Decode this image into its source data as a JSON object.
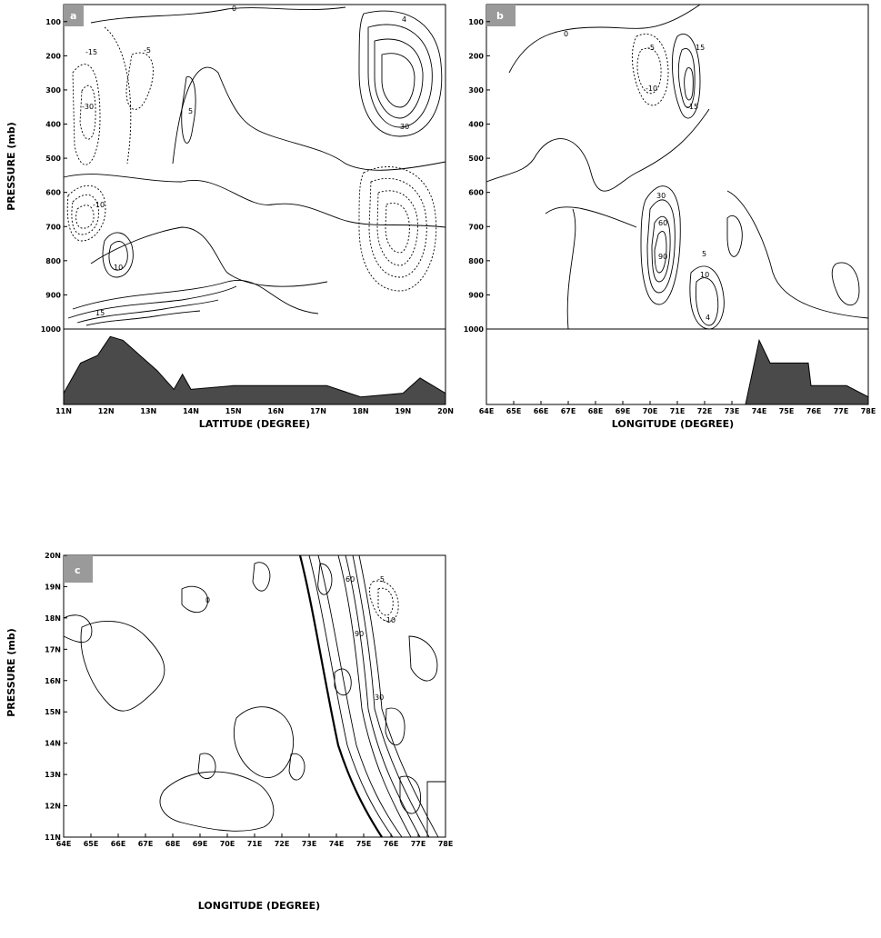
{
  "chart_data": [
    {
      "type": "contour",
      "panel_label": "a",
      "xlabel": "LATITUDE (DEGREE)",
      "ylabel": "PRESSURE (mb)",
      "x_ticks": [
        "11N",
        "12N",
        "13N",
        "14N",
        "15N",
        "16N",
        "17N",
        "18N",
        "19N",
        "20N"
      ],
      "y_ticks": [
        "100",
        "200",
        "300",
        "400",
        "500",
        "600",
        "700",
        "800",
        "900",
        "1000"
      ],
      "xlim": [
        11,
        20
      ],
      "ylim": [
        100,
        1000
      ],
      "y_inverted": true,
      "contour_labels": [
        "0",
        "-5",
        "-15",
        "-30",
        "-10",
        "5",
        "10",
        "15",
        "30",
        "4"
      ],
      "terrain_profile": [
        {
          "x": 11.0,
          "h": 0.15
        },
        {
          "x": 11.4,
          "h": 0.55
        },
        {
          "x": 11.8,
          "h": 0.65
        },
        {
          "x": 12.1,
          "h": 0.9
        },
        {
          "x": 12.4,
          "h": 0.85
        },
        {
          "x": 12.8,
          "h": 0.65
        },
        {
          "x": 13.2,
          "h": 0.45
        },
        {
          "x": 13.6,
          "h": 0.2
        },
        {
          "x": 13.8,
          "h": 0.4
        },
        {
          "x": 14.0,
          "h": 0.2
        },
        {
          "x": 15.0,
          "h": 0.25
        },
        {
          "x": 17.2,
          "h": 0.25
        },
        {
          "x": 18.0,
          "h": 0.1
        },
        {
          "x": 19.0,
          "h": 0.15
        },
        {
          "x": 19.4,
          "h": 0.35
        },
        {
          "x": 20.0,
          "h": 0.15
        }
      ]
    },
    {
      "type": "contour",
      "panel_label": "b",
      "xlabel": "LONGITUDE (DEGREE)",
      "ylabel": "",
      "x_ticks": [
        "64E",
        "65E",
        "66E",
        "67E",
        "68E",
        "69E",
        "70E",
        "71E",
        "72E",
        "73E",
        "74E",
        "75E",
        "76E",
        "77E",
        "78E"
      ],
      "y_ticks": [
        "100",
        "200",
        "300",
        "400",
        "500",
        "600",
        "700",
        "800",
        "900",
        "1000"
      ],
      "xlim": [
        64,
        78
      ],
      "ylim": [
        100,
        1000
      ],
      "y_inverted": true,
      "contour_labels": [
        "0",
        "-5",
        "-10",
        "15",
        "30",
        "60",
        "90",
        "4",
        "10",
        "5",
        "-15"
      ],
      "terrain_profile": [
        {
          "x": 64.0,
          "h": 0.0
        },
        {
          "x": 73.5,
          "h": 0.0
        },
        {
          "x": 74.0,
          "h": 0.85
        },
        {
          "x": 74.4,
          "h": 0.55
        },
        {
          "x": 75.8,
          "h": 0.55
        },
        {
          "x": 75.9,
          "h": 0.25
        },
        {
          "x": 77.2,
          "h": 0.25
        },
        {
          "x": 78.0,
          "h": 0.1
        }
      ]
    },
    {
      "type": "contour",
      "panel_label": "c",
      "xlabel": "LONGITUDE (DEGREE)",
      "ylabel": "PRESSURE (mb)",
      "x_ticks": [
        "64E",
        "65E",
        "66E",
        "67E",
        "68E",
        "69E",
        "70E",
        "71E",
        "72E",
        "73E",
        "74E",
        "75E",
        "76E",
        "77E",
        "78E"
      ],
      "y_ticks": [
        "11N",
        "12N",
        "13N",
        "14N",
        "15N",
        "16N",
        "17N",
        "18N",
        "19N",
        "20N"
      ],
      "xlim": [
        64,
        78
      ],
      "ylim": [
        11,
        20
      ],
      "y_inverted": false,
      "contour_labels": [
        "0",
        "-5",
        "-10",
        "30",
        "60",
        "90"
      ]
    }
  ]
}
